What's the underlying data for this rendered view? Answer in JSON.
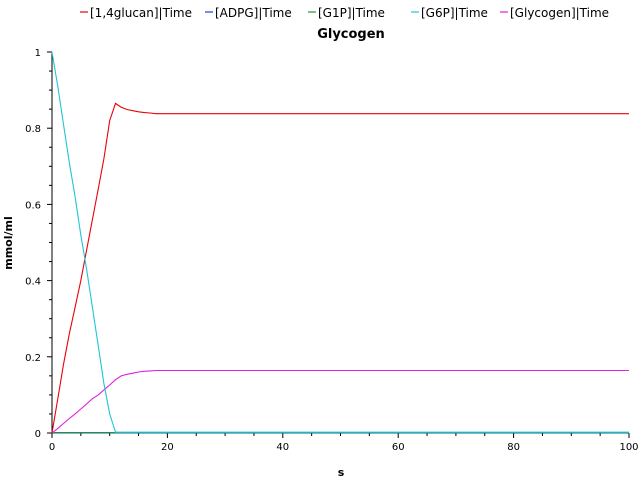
{
  "chart_data": {
    "type": "line",
    "title": "Glycogen",
    "xlabel": "s",
    "ylabel": "mmol/ml",
    "xlim": [
      0,
      100
    ],
    "ylim": [
      0,
      1
    ],
    "xticks": [
      0,
      20,
      40,
      60,
      80,
      100
    ],
    "yticks": [
      0,
      0.2,
      0.4,
      0.6,
      0.8,
      1
    ],
    "ytick_labels": [
      "0",
      "0.2",
      "0.4",
      "0.6",
      "0.8",
      "1"
    ],
    "grid": false,
    "legend_position": "top",
    "series": [
      {
        "name": "[1,4glucan]|Time",
        "color": "#e8000b",
        "x": [
          0,
          1,
          2,
          3,
          4,
          5,
          6,
          7,
          8,
          9,
          10,
          11,
          12,
          13,
          14,
          15,
          16,
          17,
          18,
          20,
          30,
          40,
          50,
          60,
          70,
          80,
          90,
          100
        ],
        "y": [
          0,
          0.09,
          0.18,
          0.26,
          0.33,
          0.4,
          0.48,
          0.56,
          0.64,
          0.72,
          0.82,
          0.865,
          0.855,
          0.849,
          0.846,
          0.843,
          0.841,
          0.84,
          0.838,
          0.838,
          0.838,
          0.838,
          0.838,
          0.838,
          0.838,
          0.838,
          0.838,
          0.838
        ]
      },
      {
        "name": "[ADPG]|Time",
        "color": "#1f3ee0",
        "x": [
          0,
          20,
          40,
          60,
          80,
          100
        ],
        "y": [
          0,
          0,
          0,
          0,
          0,
          0
        ]
      },
      {
        "name": "[G1P]|Time",
        "color": "#1a9a2e",
        "x": [
          0,
          20,
          40,
          60,
          80,
          100
        ],
        "y": [
          0.001,
          0.001,
          0.001,
          0.001,
          0.001,
          0.001
        ]
      },
      {
        "name": "[G6P]|Time",
        "color": "#1ec4d8",
        "x": [
          0,
          1,
          2,
          3,
          4,
          5,
          6,
          7,
          8,
          9,
          10,
          11,
          20,
          40,
          60,
          80,
          100
        ],
        "y": [
          1.0,
          0.91,
          0.81,
          0.71,
          0.62,
          0.52,
          0.43,
          0.33,
          0.23,
          0.13,
          0.05,
          0.002,
          0.002,
          0.002,
          0.002,
          0.002,
          0.002
        ]
      },
      {
        "name": "[Glycogen]|Time",
        "color": "#e020e0",
        "x": [
          0,
          1,
          2,
          3,
          4,
          5,
          6,
          7,
          8,
          9,
          10,
          11,
          12,
          13,
          14,
          15,
          16,
          17,
          18,
          20,
          30,
          40,
          50,
          60,
          70,
          80,
          90,
          100
        ],
        "y": [
          0,
          0.012,
          0.025,
          0.038,
          0.05,
          0.063,
          0.076,
          0.09,
          0.1,
          0.113,
          0.126,
          0.14,
          0.15,
          0.154,
          0.157,
          0.16,
          0.162,
          0.163,
          0.164,
          0.164,
          0.164,
          0.164,
          0.164,
          0.164,
          0.164,
          0.164,
          0.164,
          0.164
        ]
      }
    ]
  }
}
